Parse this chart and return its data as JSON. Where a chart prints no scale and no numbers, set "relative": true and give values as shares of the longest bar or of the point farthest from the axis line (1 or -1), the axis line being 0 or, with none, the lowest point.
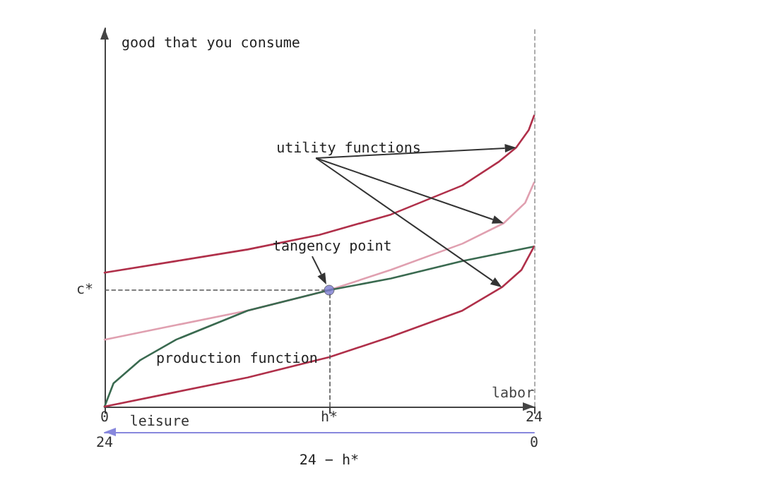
{
  "chart_data": {
    "type": "line",
    "relative": true,
    "ylabel": "good that you consume",
    "xlabel": "labor",
    "x2label": "leisure",
    "xlim": [
      0,
      24
    ],
    "xticks": [
      0,
      {
        "value": 12.55,
        "label": "h*"
      },
      24
    ],
    "x2lim": [
      24,
      0
    ],
    "x2ticks": [
      24,
      0
    ],
    "series": [
      {
        "color": "#b0304a",
        "x": [
          0,
          4,
          8,
          12,
          16,
          20,
          22,
          23,
          23.7,
          24
        ],
        "values": [
          0.46,
          0.5,
          0.54,
          0.59,
          0.66,
          0.76,
          0.84,
          0.89,
          0.95,
          1
        ]
      },
      {
        "color": "#e0a0b0",
        "x": [
          0,
          4,
          8,
          12.55,
          16,
          20,
          22.3,
          23.5,
          24
        ],
        "values": [
          0.23,
          0.28,
          0.33,
          0.4,
          0.47,
          0.56,
          0.63,
          0.7,
          0.77
        ]
      },
      {
        "color": "#3a6a50",
        "x": [
          0,
          0.5,
          2,
          4,
          8,
          12.55,
          16,
          20,
          24
        ],
        "values": [
          0,
          0.08,
          0.16,
          0.23,
          0.33,
          0.4,
          0.44,
          0.5,
          0.55
        ]
      },
      {
        "color": "#b0304a",
        "x": [
          0,
          4,
          8,
          12.55,
          16,
          20,
          22.2,
          23.3,
          24
        ],
        "values": [
          0,
          0.05,
          0.1,
          0.17,
          0.24,
          0.33,
          0.41,
          0.47,
          0.55
        ]
      },
      {
        "type": "scatter",
        "color": "#7b7bd0",
        "x": [
          12.55
        ],
        "values": [
          0.4
        ]
      }
    ],
    "ref_lines": [
      {
        "axis": "x",
        "value": 24,
        "color": "#999999",
        "line_style": "dashed"
      },
      {
        "axis": "y",
        "value": 0.4,
        "label": "c*",
        "color": "#555555",
        "line_style": "dashed"
      },
      {
        "axis": "x",
        "value": 12.55,
        "color": "#555555",
        "line_style": "dashed"
      }
    ],
    "annotations": [
      "utility functions",
      {
        "text": "tangency point",
        "x": 12.55,
        "y": 0.4
      },
      "production function",
      "24 − h*"
    ],
    "grid": false
  }
}
